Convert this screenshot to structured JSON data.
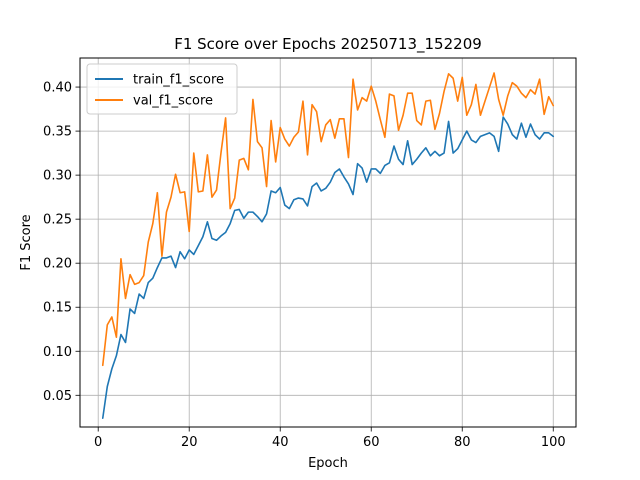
{
  "chart_data": {
    "type": "line",
    "title": "F1 Score over Epochs 20250713_152209",
    "xlabel": "Epoch",
    "ylabel": "F1 Score",
    "xlim": [
      -4,
      105
    ],
    "ylim": [
      0.014,
      0.433
    ],
    "xticks": [
      0,
      20,
      40,
      60,
      80,
      100
    ],
    "yticks": [
      0.05,
      0.1,
      0.15,
      0.2,
      0.25,
      0.3,
      0.35,
      0.4
    ],
    "ytick_labels": [
      "0.05",
      "0.10",
      "0.15",
      "0.20",
      "0.25",
      "0.30",
      "0.35",
      "0.40"
    ],
    "xtick_labels": [
      "0",
      "20",
      "40",
      "60",
      "80",
      "100"
    ],
    "grid": true,
    "legend_position": "top-left",
    "x": [
      1,
      2,
      3,
      4,
      5,
      6,
      7,
      8,
      9,
      10,
      11,
      12,
      13,
      14,
      15,
      16,
      17,
      18,
      19,
      20,
      21,
      22,
      23,
      24,
      25,
      26,
      27,
      28,
      29,
      30,
      31,
      32,
      33,
      34,
      35,
      36,
      37,
      38,
      39,
      40,
      41,
      42,
      43,
      44,
      45,
      46,
      47,
      48,
      49,
      50,
      51,
      52,
      53,
      54,
      55,
      56,
      57,
      58,
      59,
      60,
      61,
      62,
      63,
      64,
      65,
      66,
      67,
      68,
      69,
      70,
      71,
      72,
      73,
      74,
      75,
      76,
      77,
      78,
      79,
      80,
      81,
      82,
      83,
      84,
      85,
      86,
      87,
      88,
      89,
      90,
      91,
      92,
      93,
      94,
      95,
      96,
      97,
      98,
      99,
      100
    ],
    "series": [
      {
        "name": "train_f1_score",
        "color": "#1f77b4",
        "values": [
          0.024,
          0.06,
          0.08,
          0.095,
          0.119,
          0.11,
          0.148,
          0.143,
          0.165,
          0.16,
          0.178,
          0.183,
          0.195,
          0.206,
          0.206,
          0.208,
          0.195,
          0.213,
          0.205,
          0.215,
          0.21,
          0.22,
          0.23,
          0.247,
          0.228,
          0.226,
          0.231,
          0.235,
          0.245,
          0.26,
          0.261,
          0.251,
          0.258,
          0.258,
          0.253,
          0.247,
          0.256,
          0.282,
          0.28,
          0.286,
          0.266,
          0.262,
          0.272,
          0.274,
          0.273,
          0.265,
          0.287,
          0.291,
          0.282,
          0.285,
          0.292,
          0.303,
          0.307,
          0.298,
          0.29,
          0.278,
          0.313,
          0.308,
          0.292,
          0.307,
          0.307,
          0.302,
          0.311,
          0.314,
          0.333,
          0.318,
          0.312,
          0.339,
          0.312,
          0.318,
          0.325,
          0.331,
          0.322,
          0.327,
          0.322,
          0.325,
          0.361,
          0.325,
          0.33,
          0.34,
          0.35,
          0.34,
          0.337,
          0.344,
          0.346,
          0.348,
          0.344,
          0.327,
          0.366,
          0.358,
          0.346,
          0.341,
          0.359,
          0.343,
          0.358,
          0.346,
          0.341,
          0.348,
          0.348,
          0.344
        ]
      },
      {
        "name": "val_f1_score",
        "color": "#ff7f0e",
        "values": [
          0.084,
          0.13,
          0.139,
          0.116,
          0.205,
          0.16,
          0.187,
          0.176,
          0.178,
          0.186,
          0.224,
          0.245,
          0.28,
          0.208,
          0.258,
          0.275,
          0.301,
          0.28,
          0.281,
          0.236,
          0.325,
          0.281,
          0.282,
          0.323,
          0.275,
          0.283,
          0.326,
          0.365,
          0.262,
          0.274,
          0.317,
          0.319,
          0.306,
          0.386,
          0.338,
          0.331,
          0.287,
          0.362,
          0.315,
          0.354,
          0.341,
          0.333,
          0.343,
          0.349,
          0.384,
          0.323,
          0.38,
          0.372,
          0.338,
          0.357,
          0.363,
          0.342,
          0.364,
          0.364,
          0.32,
          0.409,
          0.374,
          0.388,
          0.384,
          0.401,
          0.384,
          0.363,
          0.343,
          0.392,
          0.39,
          0.351,
          0.368,
          0.393,
          0.393,
          0.362,
          0.357,
          0.384,
          0.385,
          0.352,
          0.37,
          0.395,
          0.415,
          0.41,
          0.384,
          0.411,
          0.368,
          0.38,
          0.403,
          0.368,
          0.384,
          0.4,
          0.416,
          0.386,
          0.368,
          0.39,
          0.405,
          0.401,
          0.393,
          0.388,
          0.397,
          0.392,
          0.409,
          0.369,
          0.389,
          0.379
        ]
      }
    ]
  }
}
